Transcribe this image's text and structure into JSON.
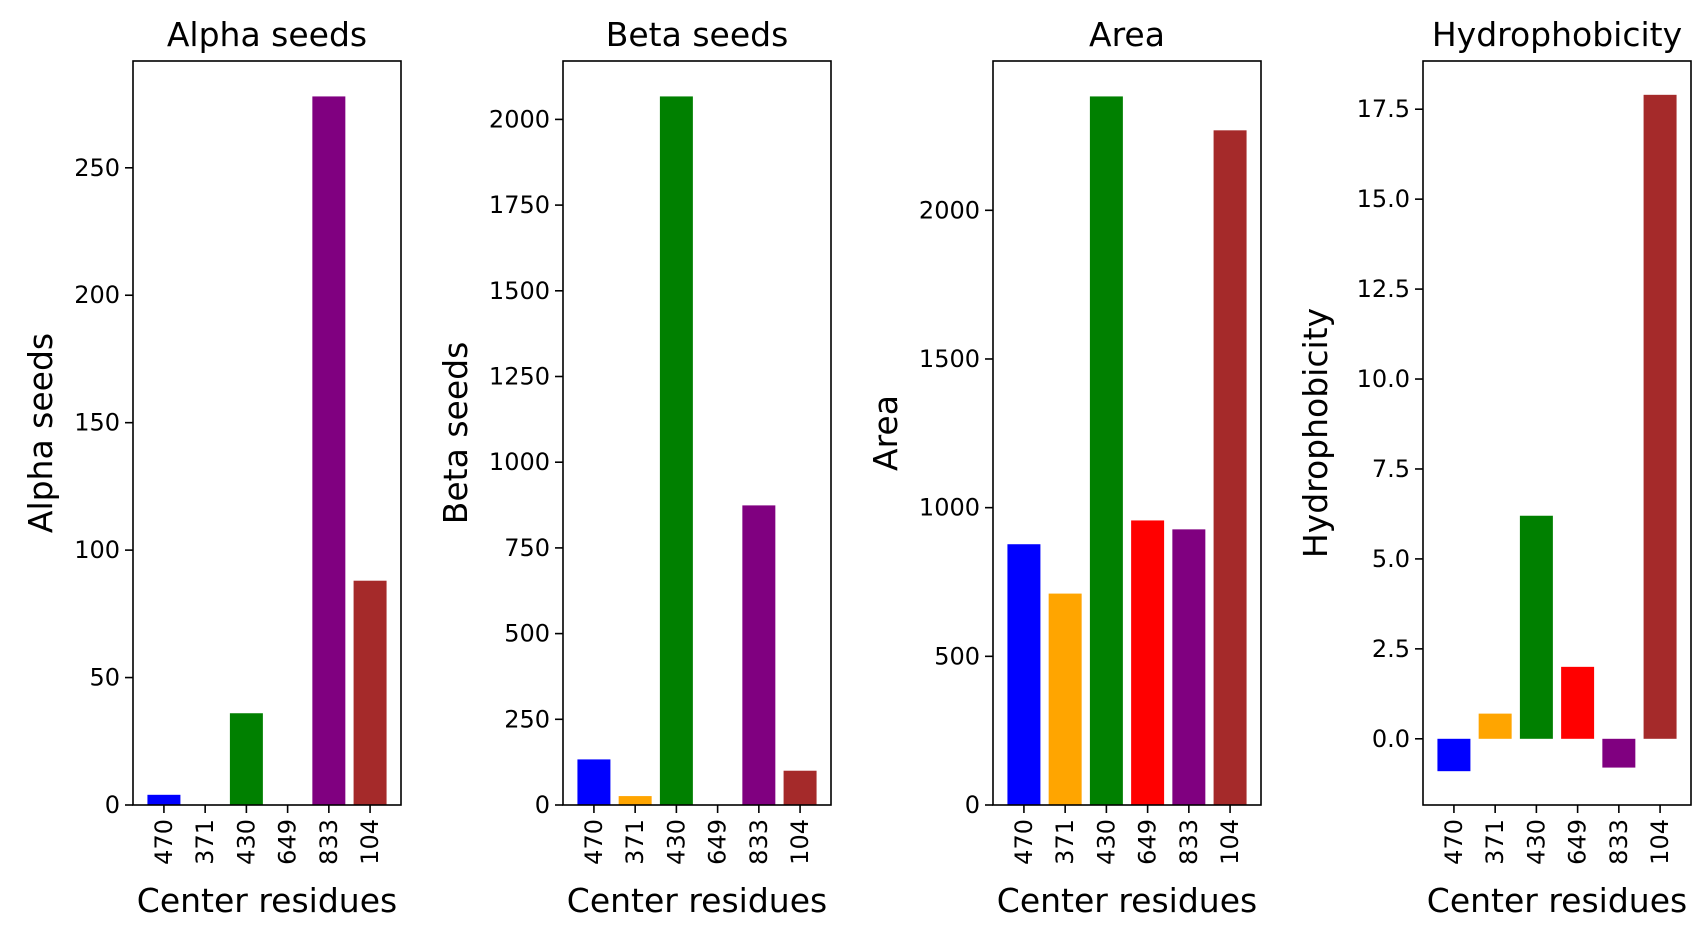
{
  "chart_data": [
    {
      "type": "bar",
      "title": "Alpha seeds",
      "xlabel": "Center residues",
      "ylabel": "Alpha seeds",
      "categories": [
        "470",
        "371",
        "430",
        "649",
        "833",
        "104"
      ],
      "values": [
        4,
        0,
        36,
        0,
        278,
        88
      ],
      "colors": [
        "#0000ff",
        "#ffa500",
        "#008000",
        "#ff0000",
        "#800080",
        "#a52a2a"
      ],
      "ylim": [
        0,
        291.9
      ],
      "yticks": [
        0,
        50,
        100,
        150,
        200,
        250
      ],
      "ytick_labels": [
        "0",
        "50",
        "100",
        "150",
        "200",
        "250"
      ]
    },
    {
      "type": "bar",
      "title": "Beta seeds",
      "xlabel": "Center residues",
      "ylabel": "Beta seeds",
      "categories": [
        "470",
        "371",
        "430",
        "649",
        "833",
        "104"
      ],
      "values": [
        133,
        26,
        2067,
        0,
        874,
        100
      ],
      "colors": [
        "#0000ff",
        "#ffa500",
        "#008000",
        "#ff0000",
        "#800080",
        "#a52a2a"
      ],
      "ylim": [
        0,
        2170.35
      ],
      "yticks": [
        0,
        250,
        500,
        750,
        1000,
        1250,
        1500,
        1750,
        2000
      ],
      "ytick_labels": [
        "0",
        "250",
        "500",
        "750",
        "1000",
        "1250",
        "1500",
        "1750",
        "2000"
      ]
    },
    {
      "type": "bar",
      "title": "Area",
      "xlabel": "Center residues",
      "ylabel": "Area",
      "categories": [
        "470",
        "371",
        "430",
        "649",
        "833",
        "104"
      ],
      "values": [
        877,
        711,
        2383,
        957,
        927,
        2269
      ],
      "colors": [
        "#0000ff",
        "#ffa500",
        "#008000",
        "#ff0000",
        "#800080",
        "#a52a2a"
      ],
      "ylim": [
        0,
        2502.15
      ],
      "yticks": [
        0,
        500,
        1000,
        1500,
        2000
      ],
      "ytick_labels": [
        "0",
        "500",
        "1000",
        "1500",
        "2000"
      ]
    },
    {
      "type": "bar",
      "title": "Hydrophobicity",
      "xlabel": "Center residues",
      "ylabel": "Hydrophobicity",
      "categories": [
        "470",
        "371",
        "430",
        "649",
        "833",
        "104"
      ],
      "values": [
        -0.9,
        0.7,
        6.2,
        2.0,
        -0.8,
        17.9
      ],
      "colors": [
        "#0000ff",
        "#ffa500",
        "#008000",
        "#ff0000",
        "#800080",
        "#a52a2a"
      ],
      "ylim": [
        -1.84,
        18.84
      ],
      "yticks": [
        0,
        2.5,
        5,
        7.5,
        10,
        12.5,
        15,
        17.5
      ],
      "ytick_labels": [
        "0.0",
        "2.5",
        "5.0",
        "7.5",
        "10.0",
        "12.5",
        "15.0",
        "17.5"
      ]
    }
  ]
}
